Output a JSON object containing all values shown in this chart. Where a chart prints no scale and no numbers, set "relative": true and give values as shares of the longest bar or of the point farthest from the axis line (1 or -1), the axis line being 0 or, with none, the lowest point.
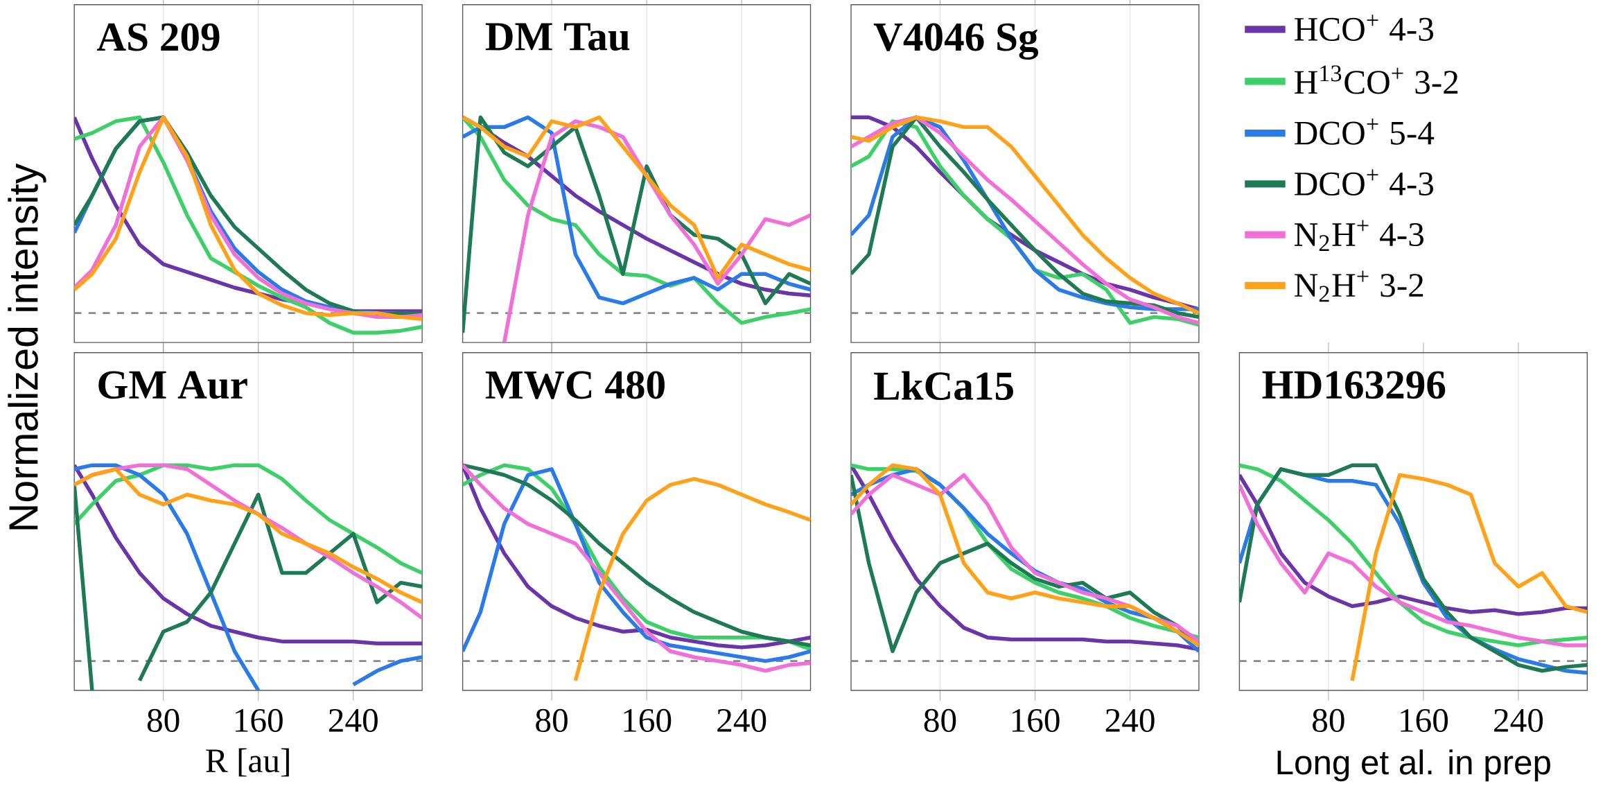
{
  "chart_data": [
    {
      "type": "line",
      "title": "AS 209",
      "ylabel": "Normalized intensity",
      "relative": true,
      "x": [
        5,
        20,
        40,
        60,
        80,
        100,
        120,
        140,
        160,
        180,
        200,
        220,
        240,
        260,
        280,
        298
      ],
      "xlim": [
        5,
        298
      ],
      "xticks": [
        80,
        160,
        240
      ],
      "tick_labels": false,
      "grid": "x",
      "ref_lines": [
        {
          "axis": "y",
          "value": 0,
          "color": "#888888",
          "line_style": "dashed"
        }
      ],
      "series": [
        {
          "color": "#6a35a8",
          "values": [
            1.0,
            0.79,
            0.55,
            0.35,
            0.25,
            0.21,
            0.17,
            0.13,
            0.1,
            0.07,
            0.05,
            0.03,
            0.01,
            0.01,
            0.01,
            0.01
          ]
        },
        {
          "color": "#3dd068",
          "values": [
            0.89,
            0.92,
            0.98,
            1.0,
            0.77,
            0.5,
            0.28,
            0.21,
            0.14,
            0.08,
            0.03,
            -0.05,
            -0.1,
            -0.1,
            -0.09,
            -0.07
          ]
        },
        {
          "color": "#2a7be8",
          "values": [
            0.41,
            0.6,
            0.84,
            0.98,
            1.0,
            0.79,
            0.52,
            0.33,
            0.21,
            0.12,
            0.06,
            0.03,
            0.01,
            0,
            0,
            0
          ]
        },
        {
          "color": "#1e7a55",
          "values": [
            0.45,
            0.6,
            0.84,
            0.98,
            1.0,
            0.82,
            0.6,
            0.44,
            0.33,
            0.22,
            0.12,
            0.05,
            0.01,
            -0.01,
            0,
            0
          ]
        },
        {
          "color": "#f070d8",
          "values": [
            0.13,
            0.22,
            0.45,
            0.85,
            1.0,
            0.78,
            0.5,
            0.3,
            0.18,
            0.1,
            0.05,
            0.02,
            0,
            -0.02,
            -0.02,
            -0.01
          ]
        },
        {
          "color": "#ffa21a",
          "values": [
            0.12,
            0.2,
            0.38,
            0.72,
            1.0,
            0.8,
            0.45,
            0.22,
            0.1,
            0.04,
            0,
            -0.01,
            0,
            0,
            -0.02,
            -0.03
          ]
        }
      ]
    },
    {
      "type": "line",
      "title": "DM Tau",
      "relative": true,
      "x": [
        5,
        20,
        40,
        60,
        80,
        100,
        120,
        140,
        160,
        180,
        200,
        220,
        240,
        260,
        280,
        298
      ],
      "xlim": [
        5,
        298
      ],
      "xticks": [
        80,
        160,
        240
      ],
      "tick_labels": false,
      "grid": "x",
      "ref_lines": [
        {
          "axis": "y",
          "value": 0,
          "color": "#888888",
          "line_style": "dashed"
        }
      ],
      "series": [
        {
          "color": "#6a35a8",
          "values": [
            1.0,
            0.95,
            0.87,
            0.8,
            0.7,
            0.6,
            0.52,
            0.45,
            0.38,
            0.32,
            0.26,
            0.2,
            0.15,
            0.12,
            0.1,
            0.09
          ]
        },
        {
          "color": "#3dd068",
          "values": [
            1.0,
            0.9,
            0.68,
            0.55,
            0.48,
            0.45,
            0.3,
            0.2,
            0.19,
            0.14,
            0.18,
            0.05,
            -0.05,
            -0.02,
            0,
            0.02
          ]
        },
        {
          "color": "#2a7be8",
          "values": [
            0.9,
            0.95,
            0.95,
            1.0,
            0.92,
            0.3,
            0.08,
            0.05,
            0.1,
            0.15,
            0.18,
            0.12,
            0.2,
            0.2,
            0.15,
            0.12
          ]
        },
        {
          "color": "#1e7a55",
          "values": [
            -0.1,
            1.0,
            0.82,
            0.75,
            0.85,
            0.95,
            0.6,
            0.2,
            0.75,
            0.5,
            0.4,
            0.38,
            0.3,
            0.05,
            0.2,
            0.15
          ]
        },
        {
          "color": "#f070d8",
          "values": [
            null,
            null,
            -0.15,
            0.5,
            0.9,
            0.98,
            0.95,
            0.9,
            0.7,
            0.5,
            0.35,
            0.15,
            0.3,
            0.48,
            0.45,
            0.5
          ]
        },
        {
          "color": "#ffa21a",
          "values": [
            1.0,
            0.95,
            0.85,
            0.8,
            0.98,
            0.95,
            1.0,
            0.85,
            0.7,
            0.55,
            0.45,
            0.18,
            0.35,
            0.3,
            0.25,
            0.22
          ]
        }
      ]
    },
    {
      "type": "line",
      "title": "V4046 Sg",
      "relative": true,
      "legend": "right",
      "x": [
        5,
        20,
        40,
        60,
        80,
        100,
        120,
        140,
        160,
        180,
        200,
        220,
        240,
        260,
        280,
        298
      ],
      "xlim": [
        5,
        298
      ],
      "xticks": [
        80,
        160,
        240
      ],
      "tick_labels": false,
      "grid": "x",
      "ref_lines": [
        {
          "axis": "y",
          "value": 0,
          "color": "#888888",
          "line_style": "dashed"
        }
      ],
      "series": [
        {
          "name": "HCO$^{+}$ 4-3",
          "color": "#6a35a8",
          "values": [
            1.0,
            1.0,
            0.95,
            0.85,
            0.72,
            0.6,
            0.48,
            0.4,
            0.32,
            0.26,
            0.2,
            0.15,
            0.12,
            0.08,
            0.05,
            0.02
          ]
        },
        {
          "name": "H$^{13}$CO$^{+}$ 3-2",
          "color": "#3dd068",
          "values": [
            0.75,
            0.8,
            0.98,
            0.95,
            0.75,
            0.6,
            0.48,
            0.38,
            0.22,
            0.18,
            0.2,
            0.12,
            -0.05,
            -0.02,
            -0.03,
            -0.06
          ]
        },
        {
          "name": "DCO$^{+}$ 5-4",
          "color": "#2a7be8",
          "values": [
            0.4,
            0.5,
            0.9,
            1.0,
            0.95,
            0.78,
            0.58,
            0.38,
            0.22,
            0.12,
            0.08,
            0.05,
            0.03,
            0.02,
            0.02,
            0.02
          ]
        },
        {
          "name": "DCO$^{+}$ 4-3",
          "color": "#1e7a55",
          "values": [
            0.2,
            0.3,
            0.85,
            1.0,
            0.85,
            0.72,
            0.58,
            0.45,
            0.32,
            0.2,
            0.1,
            0.06,
            0.05,
            0.04,
            0,
            -0.02
          ]
        },
        {
          "name": "N$_{2}$H$^{+}$ 4-3",
          "color": "#f070d8",
          "values": [
            0.85,
            0.9,
            0.97,
            1.0,
            0.92,
            0.8,
            0.68,
            0.58,
            0.47,
            0.36,
            0.25,
            0.15,
            0.07,
            0.03,
            -0.02,
            -0.05
          ]
        },
        {
          "name": "N$_{2}$H$^{+}$ 3-2",
          "color": "#ffa21a",
          "values": [
            0.9,
            0.88,
            0.95,
            1.0,
            0.98,
            0.95,
            0.95,
            0.85,
            0.7,
            0.55,
            0.4,
            0.28,
            0.18,
            0.1,
            0.05,
            0
          ]
        }
      ]
    },
    {
      "type": "line",
      "title": "GM Aur",
      "xlabel": "R [au]",
      "relative": true,
      "x": [
        5,
        20,
        40,
        60,
        80,
        100,
        120,
        140,
        160,
        180,
        200,
        220,
        240,
        260,
        280,
        298
      ],
      "xlim": [
        5,
        298
      ],
      "xticks": [
        80,
        160,
        240
      ],
      "tick_labels": "x",
      "grid": "x",
      "ref_lines": [
        {
          "axis": "y",
          "value": 0,
          "color": "#888888",
          "line_style": "dashed"
        }
      ],
      "series": [
        {
          "color": "#6a35a8",
          "values": [
            1.0,
            0.85,
            0.63,
            0.45,
            0.32,
            0.24,
            0.18,
            0.15,
            0.12,
            0.1,
            0.1,
            0.1,
            0.1,
            0.09,
            0.09,
            0.09
          ]
        },
        {
          "color": "#3dd068",
          "values": [
            0.7,
            0.8,
            0.92,
            0.95,
            1.0,
            1.0,
            0.98,
            1.0,
            1.0,
            0.93,
            0.82,
            0.72,
            0.65,
            0.58,
            0.5,
            0.45
          ]
        },
        {
          "color": "#2a7be8",
          "values": [
            0.98,
            1.0,
            1.0,
            0.95,
            0.85,
            0.65,
            0.35,
            0.05,
            -0.15,
            null,
            null,
            null,
            -0.12,
            -0.05,
            0,
            0.02
          ]
        },
        {
          "color": "#1e7a55",
          "values": [
            0.9,
            -0.15,
            null,
            -0.1,
            0.15,
            0.2,
            0.35,
            0.6,
            0.85,
            0.45,
            0.45,
            0.55,
            0.65,
            0.3,
            0.4,
            0.38
          ]
        },
        {
          "color": "#f070d8",
          "values": [
            0.9,
            0.95,
            0.98,
            1.0,
            1.0,
            0.98,
            0.9,
            0.82,
            0.75,
            0.68,
            0.6,
            0.53,
            0.45,
            0.38,
            0.3,
            0.22
          ]
        },
        {
          "color": "#ffa21a",
          "values": [
            0.9,
            0.95,
            0.98,
            0.85,
            0.8,
            0.85,
            0.82,
            0.8,
            0.75,
            0.65,
            0.6,
            0.55,
            0.48,
            0.42,
            0.35,
            0.3
          ]
        }
      ]
    },
    {
      "type": "line",
      "title": "MWC 480",
      "relative": true,
      "x": [
        5,
        20,
        40,
        60,
        80,
        100,
        120,
        140,
        160,
        180,
        200,
        220,
        240,
        260,
        280,
        298
      ],
      "xlim": [
        5,
        298
      ],
      "xticks": [
        80,
        160,
        240
      ],
      "tick_labels": "x",
      "grid": "x",
      "ref_lines": [
        {
          "axis": "y",
          "value": 0,
          "color": "#888888",
          "line_style": "dashed"
        }
      ],
      "series": [
        {
          "color": "#6a35a8",
          "values": [
            1.0,
            0.78,
            0.55,
            0.38,
            0.28,
            0.22,
            0.18,
            0.15,
            0.16,
            0.12,
            0.1,
            0.08,
            0.07,
            0.08,
            0.1,
            0.12
          ]
        },
        {
          "color": "#3dd068",
          "values": [
            0.9,
            0.95,
            1.0,
            0.98,
            0.88,
            0.7,
            0.48,
            0.32,
            0.2,
            0.15,
            0.12,
            0.12,
            0.12,
            0.12,
            0.1,
            0.06
          ]
        },
        {
          "color": "#2a7be8",
          "values": [
            0.05,
            0.25,
            0.7,
            0.95,
            0.98,
            0.7,
            0.4,
            0.25,
            0.12,
            0.08,
            0.06,
            0.04,
            0.02,
            0,
            0.02,
            0.05
          ]
        },
        {
          "color": "#1e7a55",
          "values": [
            1.0,
            0.98,
            0.95,
            0.9,
            0.82,
            0.72,
            0.6,
            0.5,
            0.4,
            0.32,
            0.25,
            0.2,
            0.15,
            0.12,
            0.1,
            0.08
          ]
        },
        {
          "color": "#f070d8",
          "values": [
            1.0,
            0.9,
            0.78,
            0.7,
            0.65,
            0.6,
            0.45,
            0.3,
            0.15,
            0.05,
            0.02,
            0,
            -0.02,
            -0.05,
            -0.02,
            -0.01
          ]
        },
        {
          "color": "#ffa21a",
          "values": [
            null,
            null,
            null,
            null,
            null,
            -0.1,
            0.35,
            0.65,
            0.82,
            0.9,
            0.93,
            0.9,
            0.85,
            0.8,
            0.76,
            0.72
          ]
        }
      ]
    },
    {
      "type": "line",
      "title": "LkCa15",
      "relative": true,
      "x": [
        5,
        20,
        40,
        60,
        80,
        100,
        120,
        140,
        160,
        180,
        200,
        220,
        240,
        260,
        280,
        298
      ],
      "xlim": [
        5,
        298
      ],
      "xticks": [
        80,
        160,
        240
      ],
      "tick_labels": "x",
      "grid": "x",
      "ref_lines": [
        {
          "axis": "y",
          "value": 0,
          "color": "#888888",
          "line_style": "dashed"
        }
      ],
      "series": [
        {
          "color": "#6a35a8",
          "values": [
            1.0,
            0.85,
            0.62,
            0.42,
            0.28,
            0.17,
            0.12,
            0.11,
            0.11,
            0.11,
            0.11,
            0.1,
            0.1,
            0.09,
            0.08,
            0.06
          ]
        },
        {
          "color": "#3dd068",
          "values": [
            1.0,
            0.98,
            0.98,
            0.97,
            0.9,
            0.78,
            0.6,
            0.47,
            0.4,
            0.35,
            0.32,
            0.28,
            0.22,
            0.18,
            0.15,
            0.12
          ]
        },
        {
          "color": "#2a7be8",
          "values": [
            0.85,
            0.9,
            0.95,
            0.98,
            0.9,
            0.78,
            0.65,
            0.55,
            0.46,
            0.4,
            0.37,
            0.3,
            0.25,
            0.22,
            0.15,
            0.05
          ]
        },
        {
          "color": "#1e7a55",
          "values": [
            0.95,
            0.5,
            0.05,
            0.35,
            0.5,
            0.55,
            0.6,
            0.5,
            0.42,
            0.38,
            0.4,
            0.32,
            0.35,
            0.25,
            0.18,
            0.08
          ]
        },
        {
          "color": "#f070d8",
          "values": [
            0.75,
            0.85,
            0.95,
            0.9,
            0.85,
            0.95,
            0.8,
            0.58,
            0.45,
            0.4,
            0.35,
            0.32,
            0.28,
            0.22,
            0.18,
            0.1
          ]
        },
        {
          "color": "#ffa21a",
          "values": [
            0.8,
            0.9,
            1.0,
            0.98,
            0.85,
            0.5,
            0.35,
            0.32,
            0.35,
            0.32,
            0.3,
            0.28,
            0.28,
            0.22,
            0.15,
            0.08
          ]
        }
      ]
    },
    {
      "type": "line",
      "title": "HD163296",
      "annotations": [
        "Long et al. in prep"
      ],
      "relative": true,
      "x": [
        5,
        20,
        40,
        60,
        80,
        100,
        120,
        140,
        160,
        180,
        200,
        220,
        240,
        260,
        280,
        298
      ],
      "xlim": [
        5,
        298
      ],
      "xticks": [
        80,
        160,
        240
      ],
      "tick_labels": "x",
      "grid": "x",
      "ref_lines": [
        {
          "axis": "y",
          "value": 0,
          "color": "#888888",
          "line_style": "dashed"
        }
      ],
      "series": [
        {
          "color": "#6a35a8",
          "values": [
            0.95,
            0.8,
            0.55,
            0.4,
            0.33,
            0.28,
            0.3,
            0.33,
            0.3,
            0.27,
            0.25,
            0.26,
            0.24,
            0.25,
            0.27,
            0.27
          ]
        },
        {
          "color": "#3dd068",
          "values": [
            1.0,
            0.98,
            0.92,
            0.82,
            0.72,
            0.6,
            0.45,
            0.3,
            0.2,
            0.15,
            0.12,
            0.1,
            0.08,
            0.1,
            0.11,
            0.12
          ]
        },
        {
          "color": "#2a7be8",
          "values": [
            0.5,
            0.8,
            0.98,
            0.95,
            0.92,
            0.92,
            0.9,
            0.7,
            0.4,
            0.22,
            0.12,
            0.06,
            0.01,
            -0.02,
            -0.05,
            -0.06
          ]
        },
        {
          "color": "#1e7a55",
          "values": [
            0.3,
            0.8,
            0.98,
            0.95,
            0.95,
            1.0,
            1.0,
            0.75,
            0.42,
            0.25,
            0.12,
            0.05,
            -0.02,
            -0.05,
            -0.03,
            -0.02
          ]
        },
        {
          "color": "#f070d8",
          "values": [
            0.9,
            0.7,
            0.5,
            0.35,
            0.55,
            0.5,
            0.38,
            0.3,
            0.25,
            0.2,
            0.18,
            0.15,
            0.12,
            0.1,
            0.08,
            0.08
          ]
        },
        {
          "color": "#ffa21a",
          "values": [
            null,
            null,
            null,
            null,
            null,
            -0.1,
            0.55,
            0.95,
            0.93,
            0.9,
            0.85,
            0.5,
            0.38,
            0.45,
            0.28,
            0.25
          ]
        }
      ]
    }
  ]
}
